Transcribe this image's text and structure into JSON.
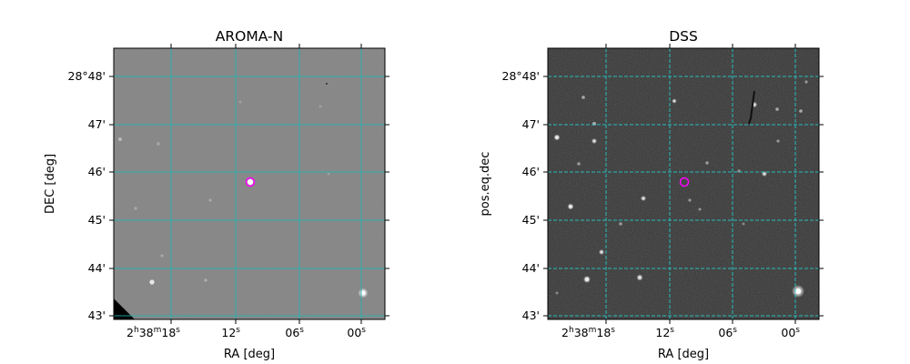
{
  "panels": [
    {
      "title": "AROMA-N",
      "xlabel": "RA [deg]",
      "ylabel": "DEC [deg]",
      "dec_ticks": [
        "28°48'",
        "47'",
        "46'",
        "45'",
        "44'",
        "43'"
      ],
      "ra_ticks": {
        "t18": {
          "lead": "2",
          "h": "h",
          "mid": "38",
          "m": "m",
          "val": "18",
          "s": "s"
        },
        "t12": {
          "val": "12",
          "s": "s"
        },
        "t06": {
          "val": "06",
          "s": "s"
        },
        "t00": {
          "val": "00",
          "s": "s"
        }
      },
      "image_style": "grayscale-mid",
      "grid_color": "#22b8b8",
      "grid_style": "solid",
      "marker_color": "#ff00ff"
    },
    {
      "title": "DSS",
      "xlabel": "RA [deg]",
      "ylabel": "pos.eq.dec",
      "dec_ticks": [
        "28°48'",
        "47'",
        "46'",
        "45'",
        "44'",
        "43'"
      ],
      "ra_ticks": {
        "t18": {
          "lead": "2",
          "h": "h",
          "mid": "38",
          "m": "m",
          "val": "18",
          "s": "s"
        },
        "t12": {
          "val": "12",
          "s": "s"
        },
        "t06": {
          "val": "06",
          "s": "s"
        },
        "t00": {
          "val": "00",
          "s": "s"
        }
      },
      "image_style": "grayscale-dark",
      "grid_color": "#22c8c8",
      "grid_style": "dashed",
      "marker_color": "#ff00ff"
    }
  ]
}
